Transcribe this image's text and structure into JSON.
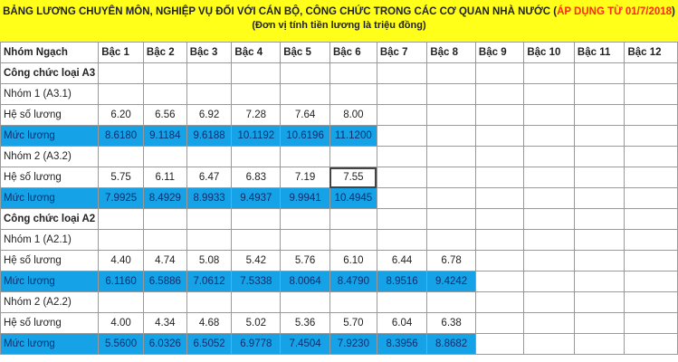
{
  "title": {
    "main": "BẢNG LƯƠNG CHUYÊN MÔN, NGHIỆP VỤ ĐỐI VỚI CÁN BỘ, CÔNG CHỨC TRONG CÁC CƠ QUAN NHÀ NƯỚC (",
    "highlight": "ÁP DỤNG TỪ 01/7/2018",
    "close": ")",
    "unit": "(Đơn vị tính tiền lương là triệu đồng)"
  },
  "colors": {
    "title_bg": "#ffff1a",
    "highlight": "#ff2a10",
    "salary_row": "#16a2e6"
  },
  "table": {
    "headers": [
      "Nhóm Ngạch",
      "Bậc 1",
      "Bậc 2",
      "Bậc 3",
      "Bậc 4",
      "Bậc 5",
      "Bậc 6",
      "Bậc 7",
      "Bậc 8",
      "Bậc 9",
      "Bậc 10",
      "Bậc 11",
      "Bậc 12"
    ],
    "rows": [
      {
        "type": "group",
        "label": "Công chức loại A3",
        "values": []
      },
      {
        "type": "sub",
        "label": "Nhóm 1 (A3.1)",
        "values": []
      },
      {
        "type": "coef",
        "label": "Hệ số lương",
        "values": [
          "6.20",
          "6.56",
          "6.92",
          "7.28",
          "7.64",
          "8.00"
        ]
      },
      {
        "type": "salary",
        "label": "Mức lương",
        "values": [
          "8.6180",
          "9.1184",
          "9.6188",
          "10.1192",
          "10.6196",
          "11.1200"
        ]
      },
      {
        "type": "sub",
        "label": "Nhóm 2 (A3.2)",
        "values": []
      },
      {
        "type": "coef",
        "label": "Hệ số lương",
        "values": [
          "5.75",
          "6.11",
          "6.47",
          "6.83",
          "7.19",
          "7.55"
        ]
      },
      {
        "type": "salary",
        "label": "Mức lương",
        "values": [
          "7.9925",
          "8.4929",
          "8.9933",
          "9.4937",
          "9.9941",
          "10.4945"
        ]
      },
      {
        "type": "group",
        "label": "Công chức loại A2",
        "values": []
      },
      {
        "type": "sub",
        "label": "Nhóm 1 (A2.1)",
        "values": []
      },
      {
        "type": "coef",
        "label": "Hệ số lương",
        "values": [
          "4.40",
          "4.74",
          "5.08",
          "5.42",
          "5.76",
          "6.10",
          "6.44",
          "6.78"
        ]
      },
      {
        "type": "salary",
        "label": "Mức lương",
        "values": [
          "6.1160",
          "6.5886",
          "7.0612",
          "7.5338",
          "8.0064",
          "8.4790",
          "8.9516",
          "9.4242"
        ]
      },
      {
        "type": "sub",
        "label": "Nhóm 2 (A2.2)",
        "values": []
      },
      {
        "type": "coef",
        "label": "Hệ số lương",
        "values": [
          "4.00",
          "4.34",
          "4.68",
          "5.02",
          "5.36",
          "5.70",
          "6.04",
          "6.38"
        ]
      },
      {
        "type": "salary",
        "label": "Mức lương",
        "values": [
          "5.5600",
          "6.0326",
          "6.5052",
          "6.9778",
          "7.4504",
          "7.9230",
          "8.3956",
          "8.8682"
        ]
      }
    ]
  }
}
